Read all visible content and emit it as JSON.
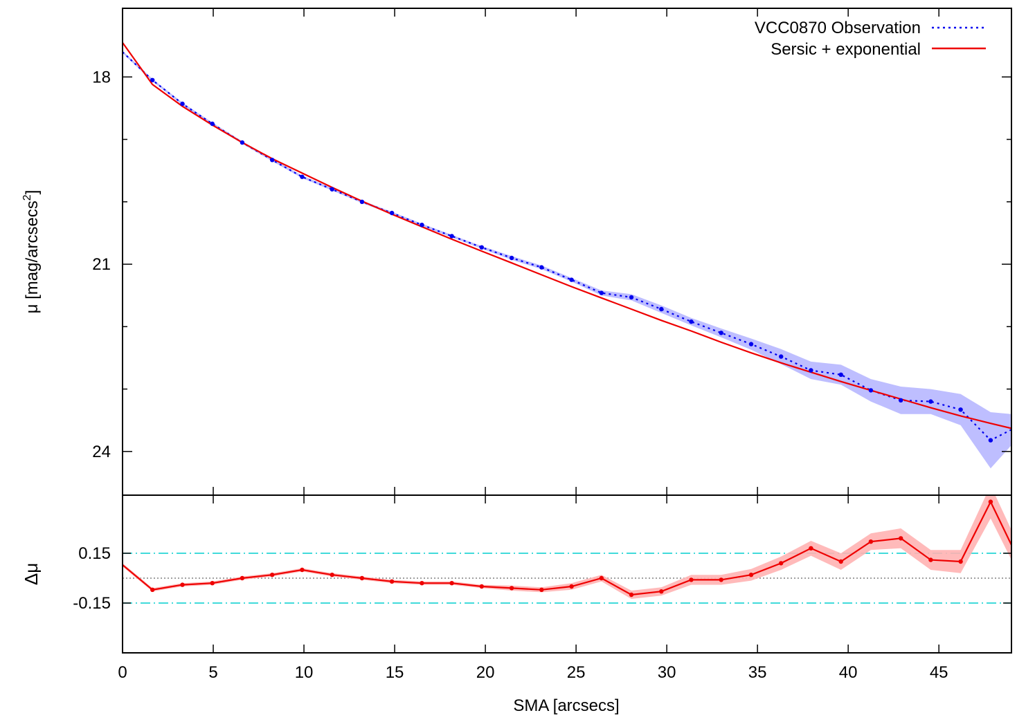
{
  "chart_data": [
    {
      "type": "line",
      "panel": "profile",
      "title": "",
      "xlabel": "",
      "ylabel": "μ [mag/arcsecs²]",
      "ylabel_base": "μ [mag/arcsecs",
      "ylabel_sup": "2",
      "ylabel_tail": "]",
      "xlim": [
        0,
        49
      ],
      "ylim": [
        24.7,
        16.9
      ],
      "y_inverted": true,
      "yticks": [
        18,
        21,
        24
      ],
      "ytick_labels": [
        "18",
        "21",
        "24"
      ],
      "yminor": [
        19,
        20,
        22,
        23
      ],
      "legend_position": "top-right",
      "series": [
        {
          "name": "VCC0870 Observation",
          "color": "#0000ee",
          "style": "dotted-with-points",
          "band_color": "#b3b3ff",
          "x": [
            0,
            1.65,
            3.3,
            4.95,
            6.6,
            8.25,
            9.9,
            11.55,
            13.2,
            14.85,
            16.5,
            18.15,
            19.8,
            21.45,
            23.1,
            24.75,
            26.4,
            28.05,
            29.7,
            31.35,
            33.0,
            34.65,
            36.3,
            37.95,
            39.6,
            41.25,
            42.9,
            44.55,
            46.2,
            47.85,
            49.0
          ],
          "y": [
            17.6,
            18.05,
            18.43,
            18.75,
            19.05,
            19.33,
            19.6,
            19.8,
            20.0,
            20.18,
            20.37,
            20.55,
            20.73,
            20.9,
            21.05,
            21.25,
            21.46,
            21.53,
            21.72,
            21.92,
            22.1,
            22.28,
            22.48,
            22.7,
            22.77,
            23.02,
            23.18,
            23.2,
            23.33,
            23.82,
            23.65
          ],
          "err": [
            0.02,
            0.02,
            0.02,
            0.02,
            0.02,
            0.02,
            0.02,
            0.02,
            0.02,
            0.02,
            0.02,
            0.02,
            0.02,
            0.03,
            0.03,
            0.03,
            0.04,
            0.05,
            0.06,
            0.06,
            0.07,
            0.09,
            0.12,
            0.14,
            0.16,
            0.18,
            0.22,
            0.2,
            0.25,
            0.45,
            0.25
          ]
        },
        {
          "name": "Sersic + exponential",
          "color": "#ee0000",
          "style": "solid",
          "x": [
            0,
            1.65,
            3.3,
            4.95,
            6.6,
            8.25,
            9.9,
            11.55,
            13.2,
            14.85,
            16.5,
            18.15,
            19.8,
            21.45,
            23.1,
            24.75,
            26.4,
            28.05,
            29.7,
            31.35,
            33.0,
            34.65,
            36.3,
            37.95,
            39.6,
            41.25,
            42.9,
            44.55,
            46.2,
            47.85,
            49.0
          ],
          "y": [
            17.45,
            18.12,
            18.47,
            18.77,
            19.05,
            19.31,
            19.54,
            19.77,
            19.99,
            20.2,
            20.4,
            20.6,
            20.79,
            20.98,
            21.17,
            21.36,
            21.54,
            21.72,
            21.9,
            22.07,
            22.25,
            22.42,
            22.58,
            22.73,
            22.88,
            23.02,
            23.16,
            23.3,
            23.43,
            23.55,
            23.63
          ]
        }
      ]
    },
    {
      "type": "line",
      "panel": "residuals",
      "title": "",
      "xlabel": "SMA [arcsecs]",
      "ylabel": "Δμ",
      "xlim": [
        0,
        49
      ],
      "ylim": [
        -0.45,
        0.5
      ],
      "xticks": [
        0,
        5,
        10,
        15,
        20,
        25,
        30,
        35,
        40,
        45
      ],
      "xtick_labels": [
        "0",
        "5",
        "10",
        "15",
        "20",
        "25",
        "30",
        "35",
        "40",
        "45"
      ],
      "yticks": [
        0.15,
        -0.15
      ],
      "ytick_labels": [
        "0.15",
        "-0.15"
      ],
      "reference_lines": [
        {
          "y": 0.15,
          "color": "#00cdcd",
          "style": "dash-dot"
        },
        {
          "y": -0.15,
          "color": "#00cdcd",
          "style": "dash-dot"
        },
        {
          "y": 0,
          "color": "#666666",
          "style": "dotted"
        }
      ],
      "series": [
        {
          "name": "",
          "color": "#ee0000",
          "style": "solid-with-points",
          "band_color": "#ffb3b3",
          "x": [
            0,
            1.65,
            3.3,
            4.95,
            6.6,
            8.25,
            9.9,
            11.55,
            13.2,
            14.85,
            16.5,
            18.15,
            19.8,
            21.45,
            23.1,
            24.75,
            26.4,
            28.05,
            29.7,
            31.35,
            33.0,
            34.65,
            36.3,
            37.95,
            39.6,
            41.25,
            42.9,
            44.55,
            46.2,
            47.85,
            49.0
          ],
          "y": [
            0.08,
            -0.07,
            -0.04,
            -0.03,
            0.0,
            0.02,
            0.05,
            0.02,
            0.0,
            -0.02,
            -0.03,
            -0.03,
            -0.05,
            -0.06,
            -0.07,
            -0.05,
            0.0,
            -0.1,
            -0.08,
            -0.01,
            -0.01,
            0.02,
            0.09,
            0.18,
            0.1,
            0.22,
            0.24,
            0.11,
            0.1,
            0.46,
            0.2
          ],
          "err": [
            0.01,
            0.01,
            0.01,
            0.01,
            0.01,
            0.01,
            0.01,
            0.01,
            0.01,
            0.01,
            0.01,
            0.01,
            0.01,
            0.015,
            0.015,
            0.02,
            0.02,
            0.025,
            0.025,
            0.03,
            0.03,
            0.035,
            0.04,
            0.045,
            0.05,
            0.05,
            0.06,
            0.06,
            0.07,
            0.1,
            0.09
          ]
        }
      ]
    }
  ]
}
